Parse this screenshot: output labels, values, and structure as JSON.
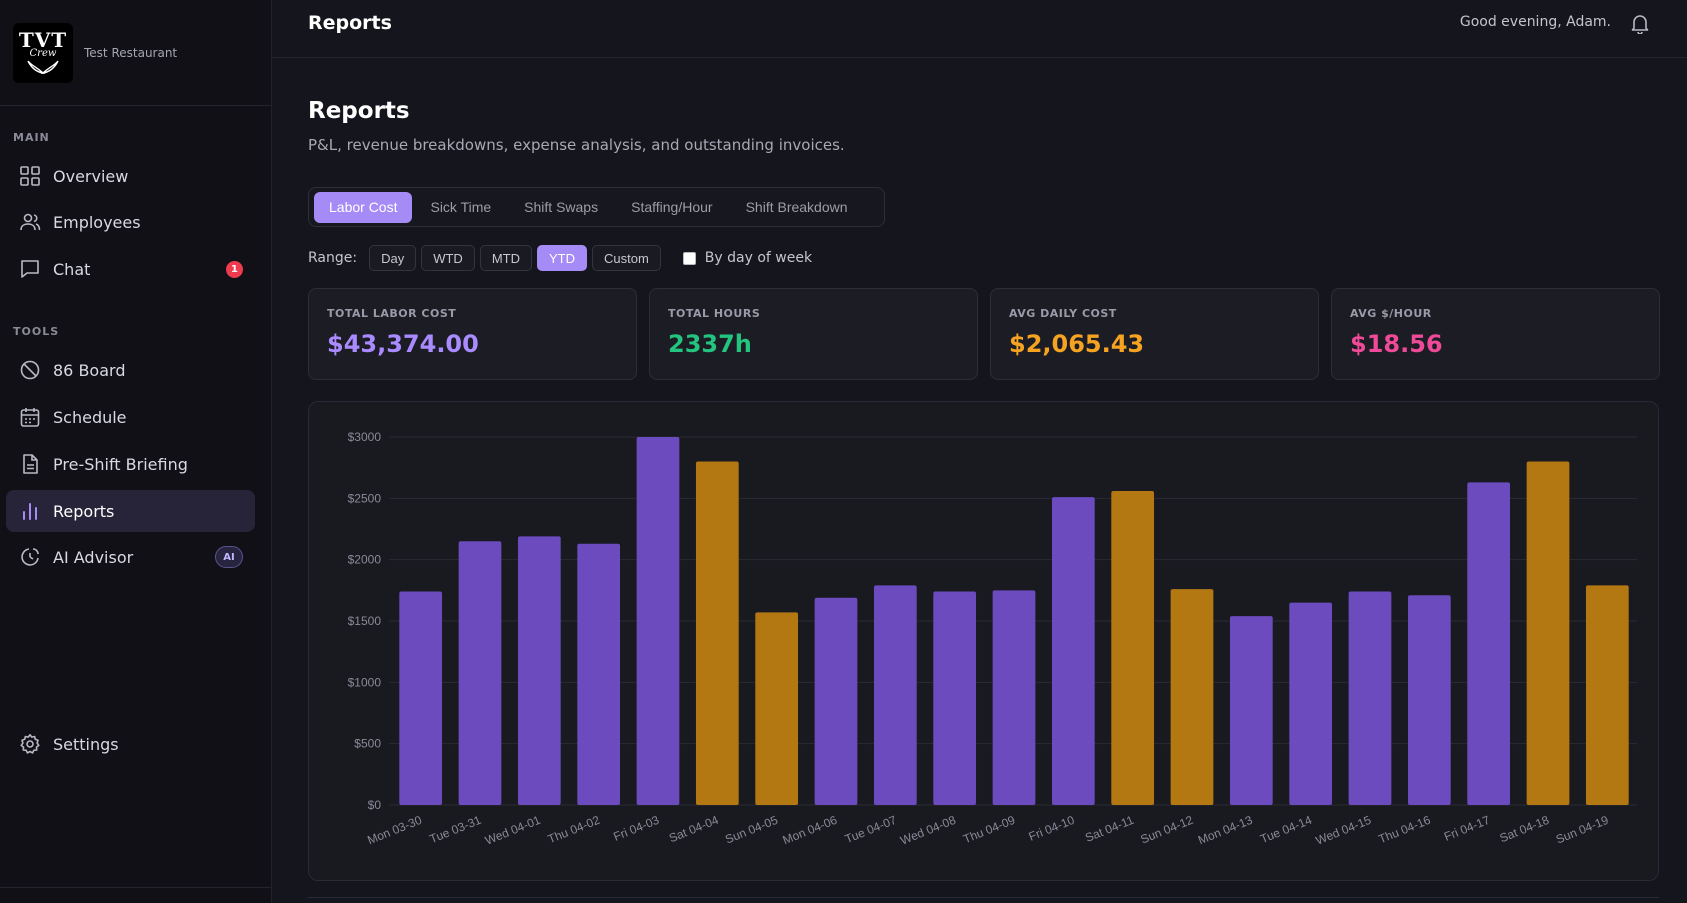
{
  "brand": {
    "logo_line1": "TVT",
    "logo_line2": "Crew",
    "restaurant": "Test Restaurant"
  },
  "sidebar": {
    "main_label": "MAIN",
    "tools_label": "TOOLS",
    "items": [
      {
        "label": "Overview",
        "icon": "grid-icon"
      },
      {
        "label": "Employees",
        "icon": "users-icon"
      },
      {
        "label": "Chat",
        "icon": "chat-icon",
        "badge": "1"
      },
      {
        "label": "86 Board",
        "icon": "ban-icon"
      },
      {
        "label": "Schedule",
        "icon": "calendar-icon"
      },
      {
        "label": "Pre-Shift Briefing",
        "icon": "document-icon"
      },
      {
        "label": "Reports",
        "icon": "bar-chart-icon",
        "active": true
      },
      {
        "label": "AI Advisor",
        "icon": "advisor-icon",
        "badge": "AI"
      },
      {
        "label": "Settings",
        "icon": "gear-icon"
      }
    ]
  },
  "header": {
    "title": "Reports",
    "greeting": "Good evening, Adam."
  },
  "page": {
    "title": "Reports",
    "subtitle": "P&L, revenue breakdowns, expense analysis, and outstanding invoices."
  },
  "tabs": [
    "Labor Cost",
    "Sick Time",
    "Shift Swaps",
    "Staffing/Hour",
    "Shift Breakdown"
  ],
  "range": {
    "label": "Range:",
    "options": [
      "Day",
      "WTD",
      "MTD",
      "YTD",
      "Custom"
    ],
    "selected": "YTD",
    "by_day_of_week_label": "By day of week"
  },
  "stats": [
    {
      "label": "TOTAL LABOR COST",
      "value": "$43,374.00",
      "color": "#a98bff"
    },
    {
      "label": "TOTAL HOURS",
      "value": "2337h",
      "color": "#22c47e"
    },
    {
      "label": "AVG DAILY COST",
      "value": "$2,065.43",
      "color": "#f5a321"
    },
    {
      "label": "AVG $/HOUR",
      "value": "$18.56",
      "color": "#ee4a97"
    }
  ],
  "colors": {
    "weekday": "#6b4bbd",
    "weekend": "#b47812",
    "accent": "#a58bf5"
  },
  "chart_data": {
    "type": "bar",
    "title": "",
    "xlabel": "",
    "ylabel": "",
    "ylim": [
      0,
      3000
    ],
    "y_ticks": [
      "$0",
      "$500",
      "$1000",
      "$1500",
      "$2000",
      "$2500",
      "$3000"
    ],
    "categories": [
      "Mon 03-30",
      "Tue 03-31",
      "Wed 04-01",
      "Thu 04-02",
      "Fri 04-03",
      "Sat 04-04",
      "Sun 04-05",
      "Mon 04-06",
      "Tue 04-07",
      "Wed 04-08",
      "Thu 04-09",
      "Fri 04-10",
      "Sat 04-11",
      "Sun 04-12",
      "Mon 04-13",
      "Tue 04-14",
      "Wed 04-15",
      "Thu 04-16",
      "Fri 04-17",
      "Sat 04-18",
      "Sun 04-19"
    ],
    "values": [
      1740,
      2150,
      2190,
      2130,
      3000,
      2800,
      1570,
      1690,
      1790,
      1740,
      1750,
      2510,
      2560,
      1760,
      1540,
      1650,
      1740,
      1710,
      2630,
      2800,
      1790
    ],
    "weekend": [
      false,
      false,
      false,
      false,
      false,
      true,
      true,
      false,
      false,
      false,
      false,
      false,
      true,
      true,
      false,
      false,
      false,
      false,
      false,
      true,
      true
    ],
    "grid": true,
    "legend": "none"
  }
}
